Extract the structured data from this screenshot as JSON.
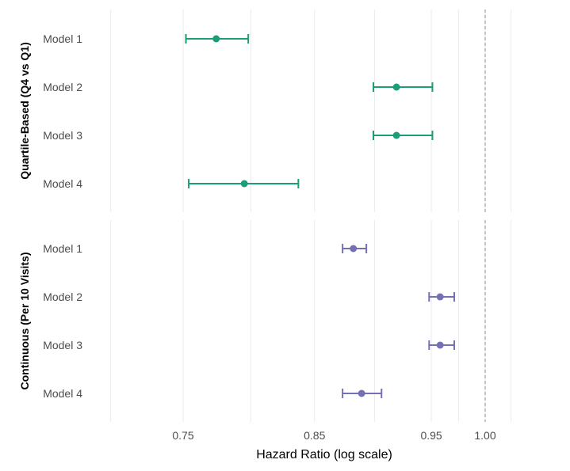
{
  "chart_data": {
    "type": "scatter",
    "subtype": "forest_plot",
    "xlabel": "Hazard Ratio (log scale)",
    "x_scale": "log",
    "xlim": [
      0.705,
      1.03
    ],
    "x_ticks": [
      {
        "value": 0.75,
        "label": "0.75"
      },
      {
        "value": 0.85,
        "label": "0.85"
      },
      {
        "value": 0.95,
        "label": "0.95"
      },
      {
        "value": 1.0,
        "label": "1.00"
      }
    ],
    "x_minor_grid": [
      0.7,
      0.8,
      0.9,
      0.975,
      1.025
    ],
    "reference_line": 1.0,
    "grid": true,
    "facets": [
      {
        "title": "Quartile-Based (Q4 vs Q1)",
        "color": "#1b9e77",
        "categories": [
          "Model 1",
          "Model 2",
          "Model 3",
          "Model 4"
        ],
        "estimates": [
          0.774,
          0.919,
          0.919,
          0.795
        ],
        "ci_lower": [
          0.752,
          0.899,
          0.899,
          0.754
        ],
        "ci_upper": [
          0.798,
          0.951,
          0.951,
          0.837
        ]
      },
      {
        "title": "Continuous (Per 10 Visits)",
        "color": "#7570b3",
        "categories": [
          "Model 1",
          "Model 2",
          "Model 3",
          "Model 4"
        ],
        "estimates": [
          0.882,
          0.958,
          0.958,
          0.889
        ],
        "ci_lower": [
          0.873,
          0.948,
          0.948,
          0.873
        ],
        "ci_upper": [
          0.893,
          0.971,
          0.971,
          0.906
        ]
      }
    ]
  }
}
